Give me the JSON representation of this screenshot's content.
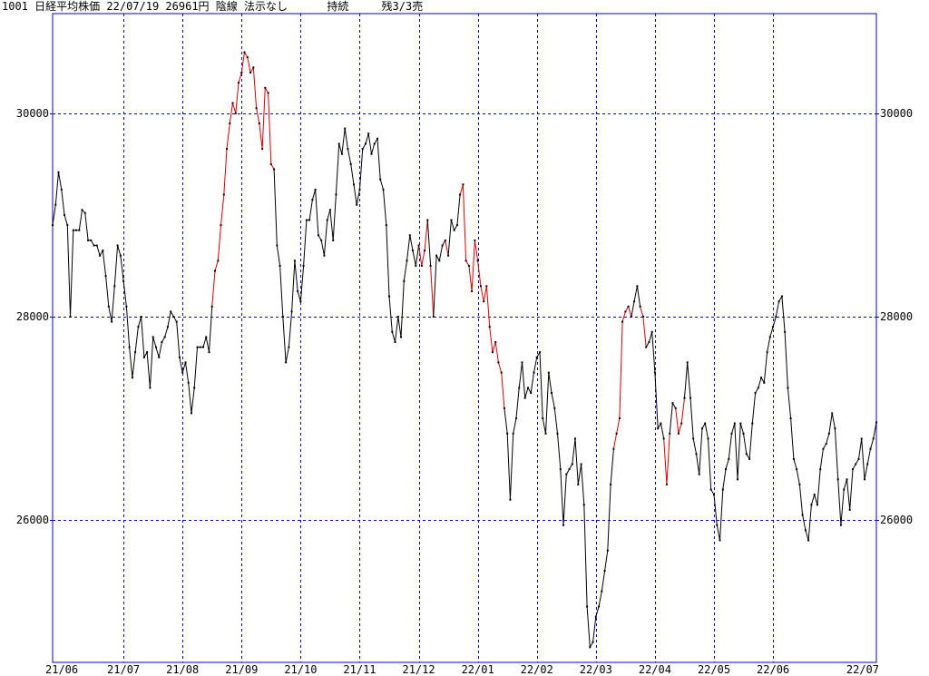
{
  "header": {
    "code": "1001",
    "name": "日経平均株価",
    "date": "22/07/19",
    "price": "26961円",
    "candle": "陰線",
    "rule": "法示なし",
    "status": "持続",
    "remaining": "残3/3売"
  },
  "colors": {
    "frame": "#0000cc",
    "grid": "#0000cc",
    "line_default": "#000000",
    "line_highlight": "#dd0000"
  },
  "chart_data": {
    "type": "line",
    "title": "",
    "xlabel": "",
    "ylabel": "",
    "ylim": [
      24600,
      30980
    ],
    "y_ticks": [
      26000,
      28000,
      30000
    ],
    "y_tick_labels": [
      "26000",
      "28000",
      "30000"
    ],
    "grid": true,
    "x_tick_labels": [
      "21/06",
      "21/07",
      "21/08",
      "21/09",
      "21/10",
      "21/11",
      "21/12",
      "22/01",
      "22/02",
      "22/03",
      "22/04",
      "22/05",
      "22/06",
      "22/07"
    ],
    "x_tick_index": [
      0,
      24,
      44,
      64,
      84,
      104,
      124,
      144,
      164,
      184,
      204,
      224,
      244,
      264
    ],
    "x_gridline_index": [
      0,
      24,
      44,
      64,
      84,
      104,
      124,
      144,
      164,
      184,
      204,
      224,
      244
    ],
    "series": [
      {
        "values": [
          28900,
          29100,
          29420,
          29250,
          29000,
          28900,
          28000,
          28850,
          28850,
          28850,
          29050,
          29020,
          28750,
          28750,
          28700,
          28700,
          28600,
          28650,
          28400,
          28100,
          27950,
          28300,
          28700,
          28600,
          28350,
          28100,
          27700,
          27400,
          27650,
          27900,
          28000,
          27600,
          27650,
          27300,
          27800,
          27700,
          27600,
          27750,
          27800,
          27900,
          28050,
          28000,
          27950,
          27600,
          27450,
          27550,
          27350,
          27050,
          27300,
          27700,
          27700,
          27700,
          27800,
          27650,
          28100,
          28450,
          28550,
          28900,
          29200,
          29650,
          29900,
          30100,
          30000,
          30300,
          30400,
          30600,
          30550,
          30400,
          30450,
          30050,
          29900,
          29650,
          30250,
          30200,
          29500,
          29450,
          28700,
          28500,
          28000,
          27550,
          27700,
          28050,
          28550,
          28250,
          28150,
          28500,
          28950,
          28950,
          29150,
          29250,
          28800,
          28750,
          28600,
          28950,
          29050,
          28750,
          29200,
          29700,
          29600,
          29850,
          29650,
          29500,
          29300,
          29100,
          29250,
          29650,
          29700,
          29800,
          29600,
          29700,
          29750,
          29350,
          29250,
          28900,
          28200,
          27850,
          27750,
          28000,
          27800,
          28350,
          28550,
          28800,
          28650,
          28500,
          28700,
          28500,
          28650,
          28950,
          28500,
          28000,
          28600,
          28550,
          28700,
          28750,
          28600,
          28950,
          28850,
          28900,
          29200,
          29300,
          28550,
          28500,
          28250,
          28750,
          28550,
          28300,
          28150,
          28300,
          27900,
          27650,
          27750,
          27550,
          27450,
          27100,
          26850,
          26200,
          26850,
          27000,
          27300,
          27550,
          27200,
          27300,
          27250,
          27450,
          27600,
          27650,
          27000,
          26850,
          27450,
          27250,
          27100,
          26850,
          26500,
          25950,
          26450,
          26500,
          26550,
          26800,
          26350,
          26550,
          26150,
          25150,
          24750,
          24800,
          25050,
          25150,
          25300,
          25500,
          25700,
          26350,
          26700,
          26850,
          27000,
          27950,
          28050,
          28100,
          28000,
          28150,
          28300,
          28100,
          28000,
          27700,
          27750,
          27850,
          27450,
          26900,
          26950,
          26800,
          26350,
          26850,
          27150,
          27100,
          26850,
          26950,
          27200,
          27550,
          27200,
          26800,
          26650,
          26450,
          26900,
          26950,
          26800,
          26300,
          26250,
          25950,
          25800,
          26300,
          26500,
          26600,
          26850,
          26950,
          26400,
          26950,
          26850,
          26650,
          26600,
          26950,
          27250,
          27300,
          27400,
          27350,
          27650,
          27800,
          27900,
          28000,
          28150,
          28200,
          27850,
          27300,
          27000,
          26600,
          26500,
          26350,
          26050,
          25900,
          25800,
          26150,
          26250,
          26150,
          26500,
          26700,
          26750,
          26850,
          27050,
          26900,
          26400,
          25950,
          26300,
          26400,
          26100,
          26500,
          26550,
          26600,
          26800,
          26400,
          26550,
          26700,
          26800,
          26961
        ],
        "red_segments": [
          [
            54,
            75
          ],
          [
            124,
            127
          ],
          [
            128,
            129
          ],
          [
            133,
            134
          ],
          [
            138,
            153
          ],
          [
            190,
            196
          ],
          [
            199,
            201
          ],
          [
            207,
            209
          ],
          [
            211,
            214
          ]
        ]
      }
    ]
  }
}
